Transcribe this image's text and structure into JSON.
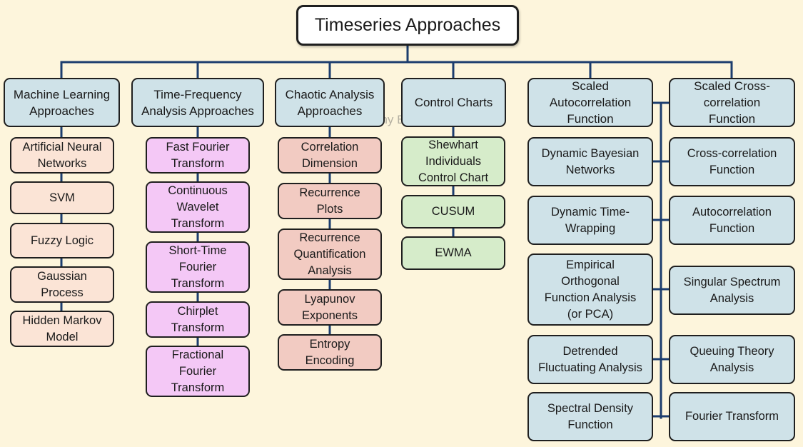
{
  "title": "Timeseries Approaches",
  "watermark": "@Danny Butvinik",
  "colors": {
    "background": "#fdf5dc",
    "line": "#1c3d6e",
    "header": "#cfe2e8",
    "machine_learning": "#fbe4d6",
    "time_frequency": "#f4c8f6",
    "chaotic": "#f2cbc2",
    "control_charts": "#d6ecca",
    "autocorrelation": "#cfe2e8"
  },
  "categories": [
    {
      "id": "ml",
      "label": "Machine Learning\nApproaches",
      "items": [
        "Artificial Neural\nNetworks",
        "SVM",
        "Fuzzy Logic",
        "Gaussian\nProcess",
        "Hidden Markov\nModel"
      ]
    },
    {
      "id": "tf",
      "label": "Time-Frequency\nAnalysis Approaches",
      "items": [
        "Fast Fourier\nTransform",
        "Continuous\nWavelet\nTransform",
        "Short-Time\nFourier\nTransform",
        "Chirplet\nTransform",
        "Fractional\nFourier\nTransform"
      ]
    },
    {
      "id": "ch",
      "label": "Chaotic Analysis\nApproaches",
      "items": [
        "Correlation\nDimension",
        "Recurrence\nPlots",
        "Recurrence\nQuantification\nAnalysis",
        "Lyapunov\nExponents",
        "Entropy\nEncoding"
      ]
    },
    {
      "id": "cc",
      "label": "Control Charts",
      "items": [
        "Shewhart\nIndividuals\nControl Chart",
        "CUSUM",
        "EWMA"
      ]
    },
    {
      "id": "ac",
      "label": "Scaled\nAutocorrelation\nFunction",
      "items": [
        "Dynamic Bayesian\nNetworks",
        "Dynamic Time-\nWrapping",
        "Empirical\nOrthogonal\nFunction Analysis\n(or PCA)",
        "Detrended\nFluctuating Analysis",
        "Spectral Density\nFunction"
      ]
    },
    {
      "id": "xc",
      "label": "Scaled Cross-\ncorrelation\nFunction",
      "items": [
        "Cross-correlation\nFunction",
        "Autocorrelation\nFunction",
        "Singular Spectrum\nAnalysis",
        "Queuing Theory\nAnalysis",
        "Fourier Transform"
      ]
    }
  ]
}
